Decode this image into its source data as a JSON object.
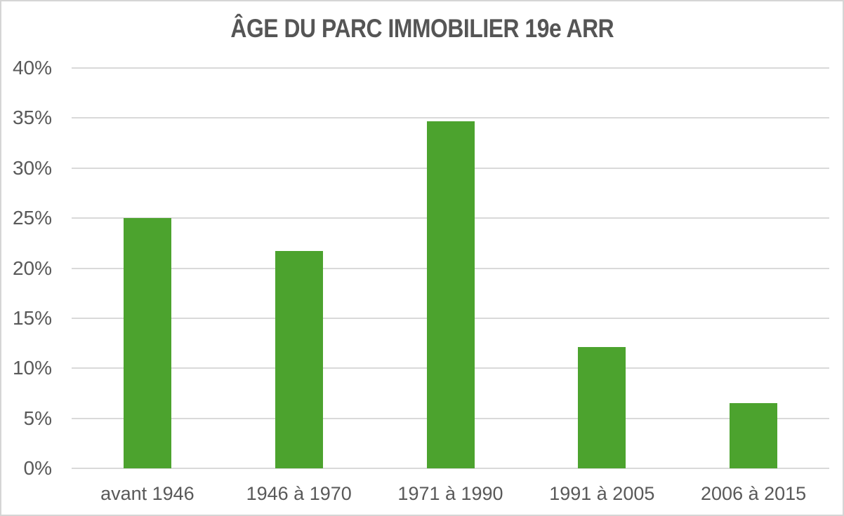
{
  "title": "ÂGE DU PARC IMMOBILIER 19e ARR",
  "colors": {
    "bar": "#4CA32E",
    "title_text": "#555555",
    "axis_text": "#595959",
    "gridline": "#D9D9D9",
    "frame_border": "#D5D5D5",
    "background": "#FFFFFF"
  },
  "chart_data": {
    "type": "bar",
    "title": "ÂGE DU PARC IMMOBILIER 19e ARR",
    "categories": [
      "avant 1946",
      "1946 à 1970",
      "1971 à 1990",
      "1991 à 2005",
      "2006 à 2015"
    ],
    "values": [
      25.0,
      21.7,
      34.7,
      12.1,
      6.5
    ],
    "value_unit": "%",
    "xlabel": "",
    "ylabel": "",
    "ylim": [
      0,
      40
    ],
    "y_tick_step": 5,
    "y_tick_labels": [
      "0%",
      "5%",
      "10%",
      "15%",
      "20%",
      "25%",
      "30%",
      "35%",
      "40%"
    ],
    "grid": true,
    "legend_position": "none",
    "bar_color": "#4CA32E"
  }
}
